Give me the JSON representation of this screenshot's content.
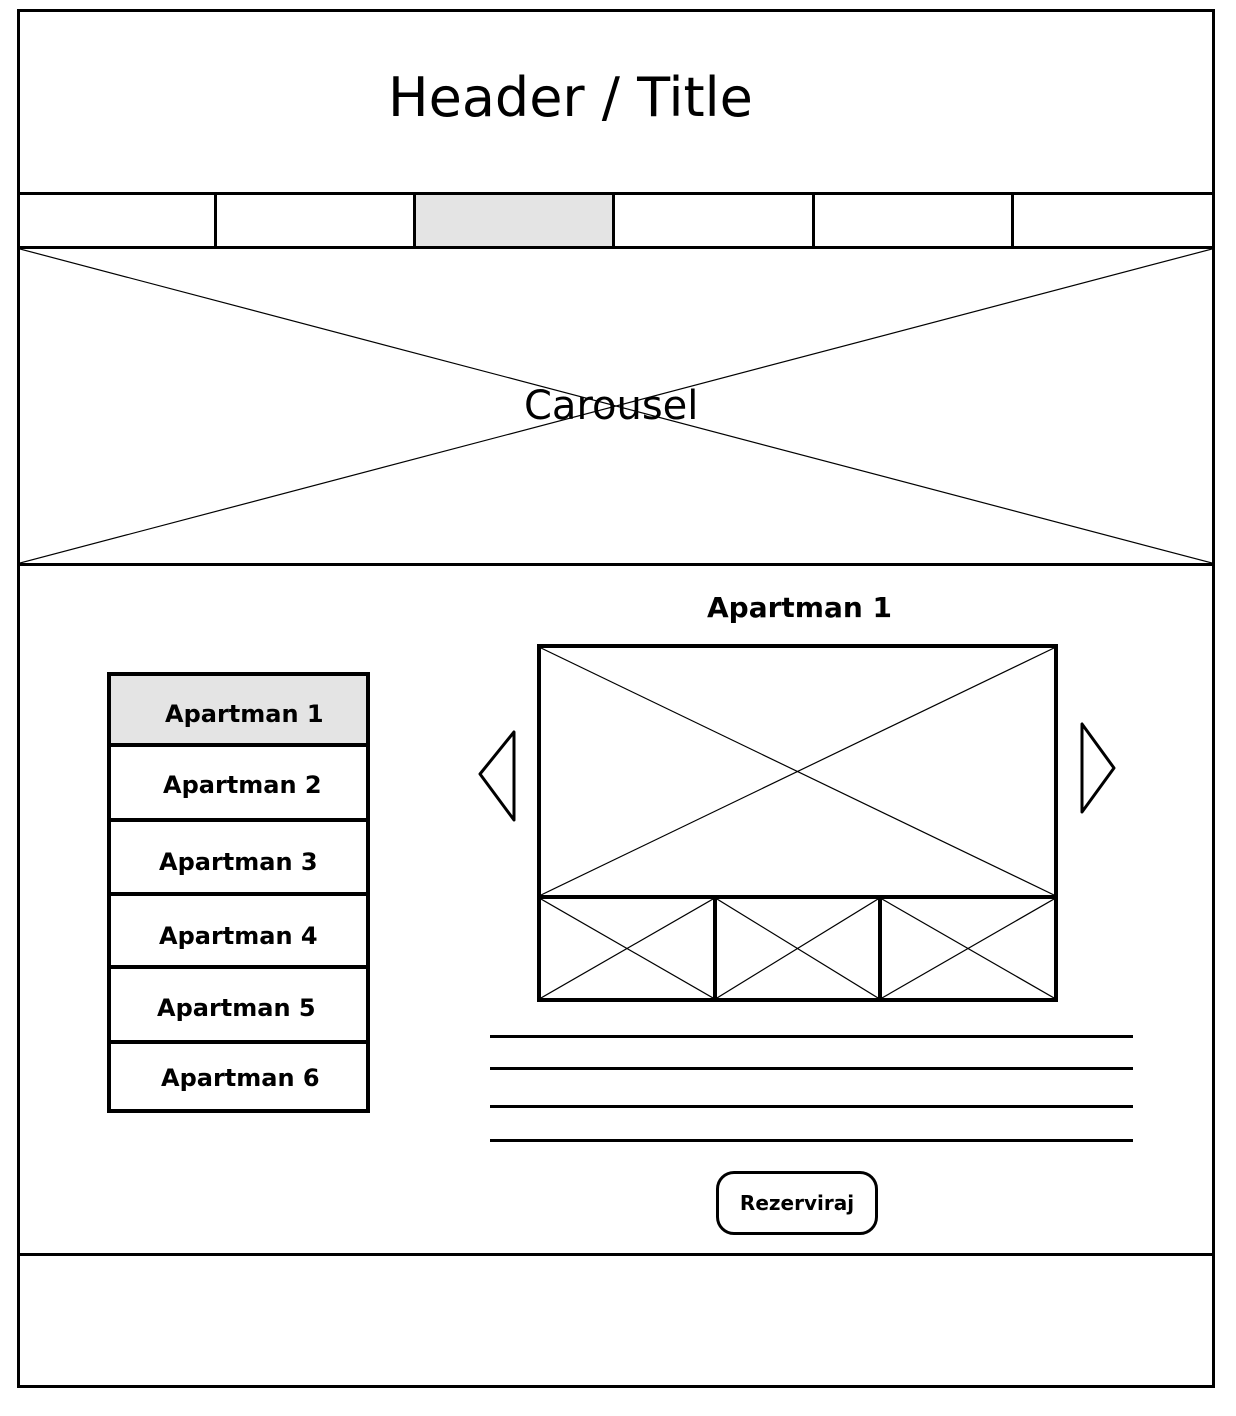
{
  "header": {
    "title": "Header / Title"
  },
  "nav": {
    "tabs": [
      "",
      "",
      "",
      "",
      "",
      ""
    ],
    "active_tab_index": 2
  },
  "carousel": {
    "label": "Carousel"
  },
  "apartment_list": {
    "items": [
      "Apartman 1",
      "Apartman 2",
      "Apartman 3",
      "Apartman 4",
      "Apartman 5",
      "Apartman 6"
    ],
    "selected_index": 0
  },
  "detail": {
    "title": "Apartman 1",
    "book_button_label": "Rezerviraj",
    "text_line_count": 4,
    "thumbnail_count": 3
  },
  "icons": {
    "prev": "chevron-left-icon",
    "next": "chevron-right-icon",
    "placeholder": "image-placeholder-icon"
  },
  "colors": {
    "line": "#000000",
    "active_fill": "#e4e4e4",
    "background": "#ffffff"
  }
}
